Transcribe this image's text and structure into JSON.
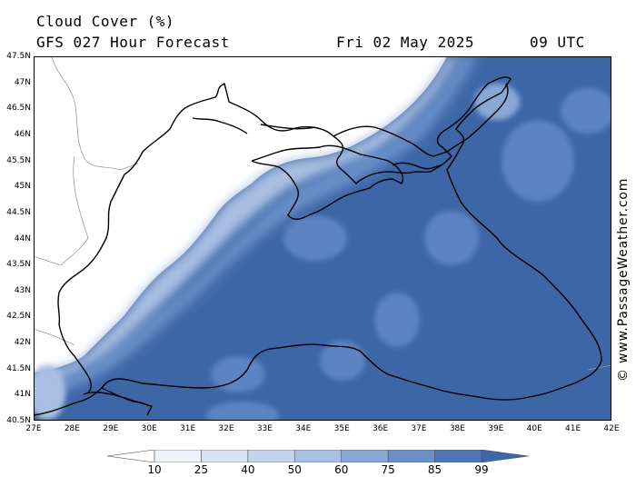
{
  "header": {
    "title": "Cloud Cover (%)",
    "forecast": "GFS 027 Hour Forecast",
    "date": "Fri 02 May 2025",
    "time": "09 UTC"
  },
  "credit": "© www.PassageWeather.com",
  "axes": {
    "lat_labels": [
      "47.5N",
      "47N",
      "46.5N",
      "46N",
      "45.5N",
      "45N",
      "44.5N",
      "44N",
      "43.5N",
      "43N",
      "42.5N",
      "42N",
      "41.5N",
      "41N",
      "40.5N"
    ],
    "lon_labels": [
      "27E",
      "28E",
      "29E",
      "30E",
      "31E",
      "32E",
      "33E",
      "34E",
      "35E",
      "36E",
      "37E",
      "38E",
      "39E",
      "40E",
      "41E",
      "42E"
    ]
  },
  "legend": {
    "ticks": [
      "10",
      "25",
      "40",
      "50",
      "60",
      "75",
      "85",
      "99"
    ],
    "colors": [
      "#ffffff",
      "#eef3fb",
      "#d9e4f3",
      "#c3d4ec",
      "#a9c0e2",
      "#8aa8d6",
      "#6b8fc8",
      "#4e77b8",
      "#3d66a6"
    ]
  },
  "colors": {
    "sea_dense": "#3d66a6",
    "sea_mid": "#5b84c2",
    "sea_light": "#8aa8d6",
    "land_clear": "#ffffff",
    "coast": "#000000",
    "border": "#9a9a9a"
  }
}
